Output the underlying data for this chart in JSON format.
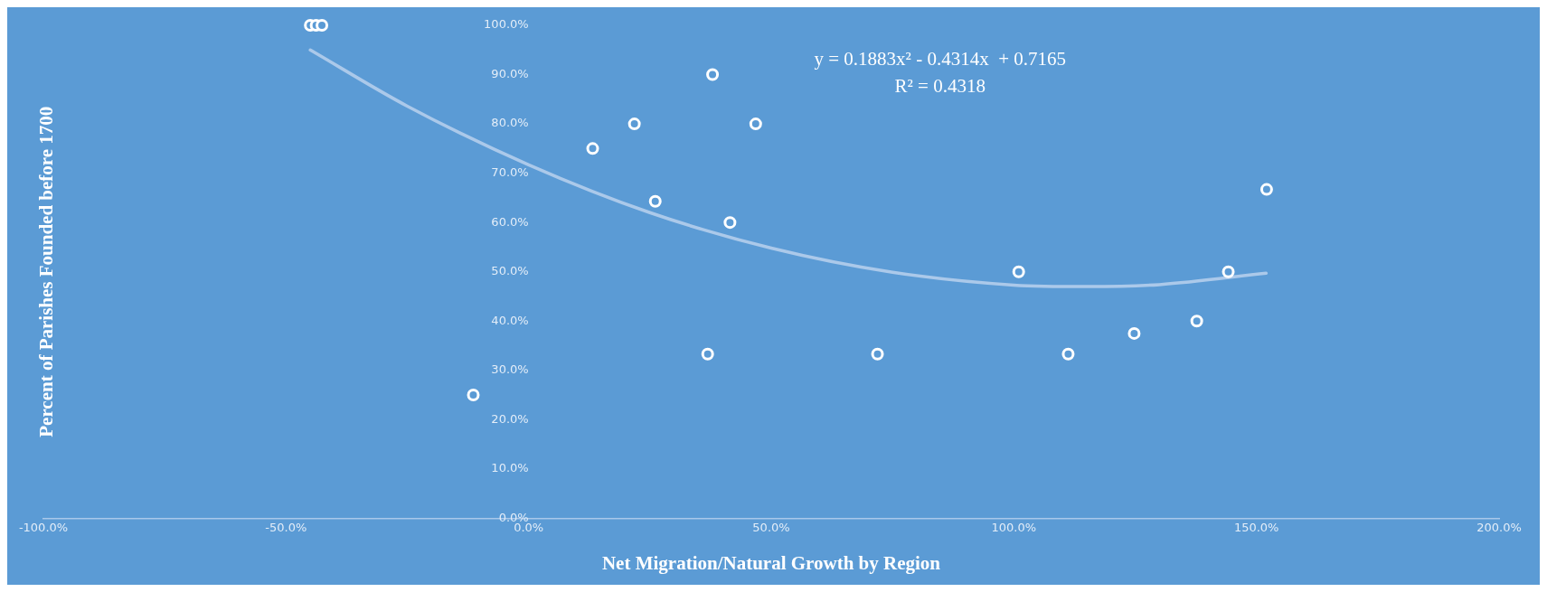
{
  "chart_data": {
    "type": "scatter",
    "xlabel": "Net Migration/Natural Growth by Region",
    "ylabel": "Percent of Parishes Founded before 1700",
    "annotations": [
      "y = 0.1883x² - 0.4314x  + 0.7165",
      "R² = 0.4318"
    ],
    "xlim": [
      -100,
      200
    ],
    "xticks": [
      {
        "value": -100,
        "label": "-100.0%"
      },
      {
        "value": -50,
        "label": "-50.0%"
      },
      {
        "value": 0,
        "label": "0.0%"
      },
      {
        "value": 50,
        "label": "50.0%"
      },
      {
        "value": 100,
        "label": "100.0%"
      },
      {
        "value": 150,
        "label": "150.0%"
      },
      {
        "value": 200,
        "label": "200.0%"
      }
    ],
    "ylim": [
      0,
      100
    ],
    "yticks": [
      {
        "value": 0,
        "label": "0.0%"
      },
      {
        "value": 10,
        "label": "10.0%"
      },
      {
        "value": 20,
        "label": "20.0%"
      },
      {
        "value": 30,
        "label": "30.0%"
      },
      {
        "value": 40,
        "label": "40.0%"
      },
      {
        "value": 50,
        "label": "50.0%"
      },
      {
        "value": 60,
        "label": "60.0%"
      },
      {
        "value": 70,
        "label": "70.0%"
      },
      {
        "value": 80,
        "label": "80.0%"
      },
      {
        "value": 90,
        "label": "90.0%"
      },
      {
        "value": 100,
        "label": "100.0%"
      }
    ],
    "grid": false,
    "legend": false,
    "marker": "circle",
    "series": [
      {
        "type": "scatter",
        "color": "#ffffff",
        "x": [
          -45,
          -43.8,
          -42.6,
          -11.4,
          13.2,
          21.8,
          26.1,
          36.9,
          37.9,
          41.5,
          46.8,
          71.9,
          101,
          111.2,
          124.8,
          137.7,
          144.2,
          152.1
        ],
        "values": [
          100,
          100,
          100,
          25,
          75,
          80,
          64.3,
          33.3,
          90,
          60,
          80,
          33.3,
          50,
          33.3,
          37.5,
          40,
          50,
          66.7
        ]
      },
      {
        "type": "line",
        "color": "#abc9ea",
        "marker": "none",
        "x": [
          -45,
          -25,
          0,
          25,
          50,
          75,
          100,
          115,
          130,
          152
        ],
        "values": [
          95,
          83.6,
          71.7,
          62,
          54.8,
          49.9,
          47.3,
          47,
          47.4,
          49.7
        ]
      }
    ]
  }
}
